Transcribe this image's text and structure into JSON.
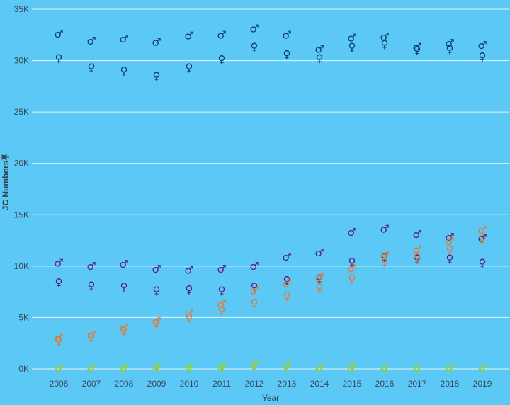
{
  "chart_data": {
    "type": "scatter",
    "xlabel": "Year",
    "ylabel": "JC Numbers",
    "ylabel_icon": "pin-icon",
    "ylim": [
      0,
      35000
    ],
    "y_ticks": [
      {
        "value": 0,
        "label": "0K"
      },
      {
        "value": 5000,
        "label": "5K"
      },
      {
        "value": 10000,
        "label": "10K"
      },
      {
        "value": 15000,
        "label": "15K"
      },
      {
        "value": 20000,
        "label": "20K"
      },
      {
        "value": 25000,
        "label": "25K"
      },
      {
        "value": 30000,
        "label": "30K"
      },
      {
        "value": 35000,
        "label": "35K"
      }
    ],
    "x": [
      "2006",
      "2007",
      "2008",
      "2009",
      "2010",
      "2011",
      "2012",
      "2013",
      "2014",
      "2015",
      "2016",
      "2017",
      "2018",
      "2019"
    ],
    "grid": true,
    "marker_symbols": {
      "male": "♂",
      "female": "♀"
    },
    "series": [
      {
        "color": "#0d3b66",
        "symbol": "male",
        "values": [
          32600,
          31900,
          32100,
          31800,
          32400,
          32500,
          33100,
          32500,
          31100,
          32200,
          32300,
          31300,
          31700,
          31500
        ]
      },
      {
        "color": "#0d3b66",
        "symbol": "female",
        "values": [
          30200,
          29300,
          29000,
          28500,
          29300,
          30100,
          31300,
          30600,
          30200,
          31300,
          31600,
          31000,
          31100,
          30400
        ]
      },
      {
        "color": "#5b1a7a",
        "symbol": "male",
        "values": [
          10300,
          10000,
          10200,
          9700,
          9600,
          9700,
          10000,
          10900,
          11300,
          13300,
          13600,
          13100,
          12800,
          12700
        ]
      },
      {
        "color": "#5b1a7a",
        "symbol": "female",
        "values": [
          8400,
          8100,
          8000,
          7600,
          7700,
          7600,
          8000,
          8600,
          8800,
          10400,
          10900,
          10700,
          10700,
          10300
        ]
      },
      {
        "color": "#e8772e",
        "symbol": "male",
        "values": [
          3000,
          3300,
          4000,
          4600,
          5400,
          6300,
          7600,
          8300,
          8900,
          9800,
          11000,
          11600,
          12400,
          13500
        ]
      },
      {
        "color": "#e8772e",
        "symbol": "female",
        "values": [
          2700,
          3100,
          3700,
          4400,
          5000,
          5700,
          6400,
          7100,
          7900,
          8800,
          10400,
          10800,
          11600,
          12600
        ]
      },
      {
        "color": "#8fcf3c",
        "symbol": "male",
        "values": [
          20,
          40,
          70,
          130,
          100,
          150,
          360,
          300,
          60,
          150,
          40,
          10,
          50,
          50
        ]
      },
      {
        "color": "#8fcf3c",
        "symbol": "female",
        "values": [
          10,
          20,
          50,
          100,
          80,
          120,
          320,
          240,
          40,
          120,
          30,
          5,
          40,
          40
        ]
      }
    ]
  }
}
